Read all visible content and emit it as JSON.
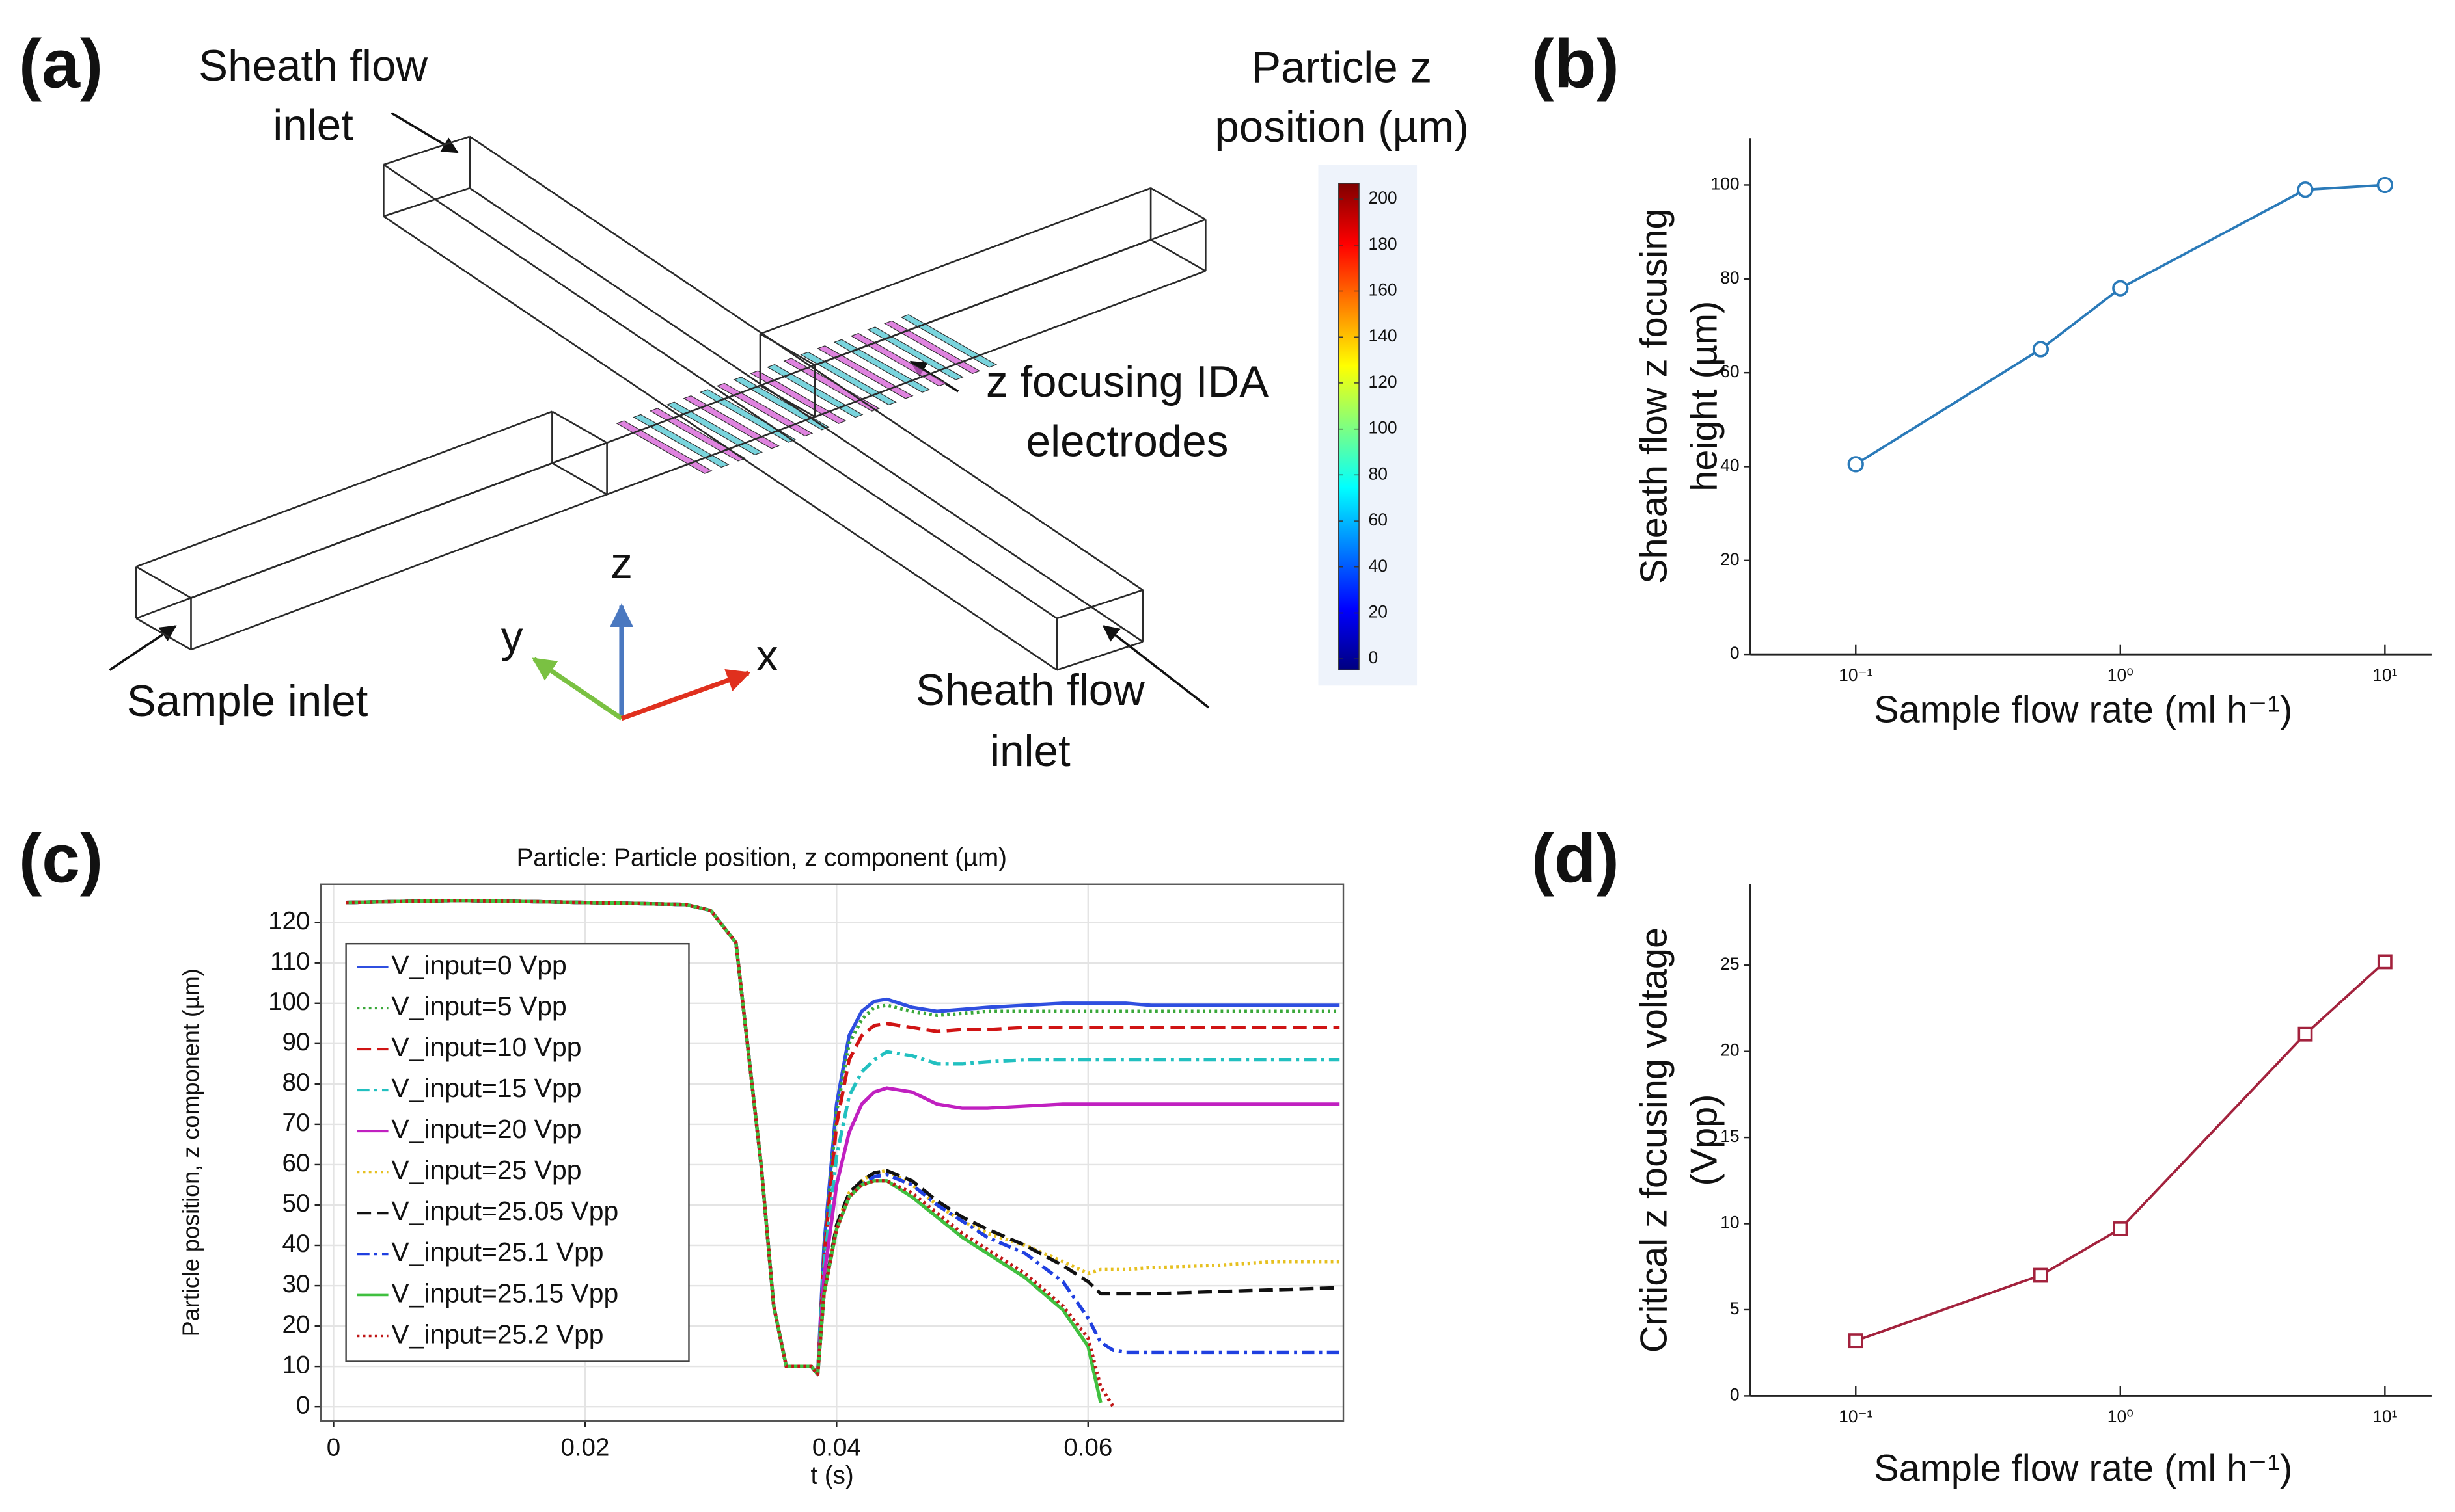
{
  "diagram": {
    "panel_label": "(a)",
    "sheath_inlet_top": [
      "Sheath flow",
      "inlet"
    ],
    "colorbar_title": [
      "Particle z",
      "position (µm)"
    ],
    "electrodes_label": [
      "z focusing IDA",
      "electrodes"
    ],
    "sample_inlet": "Sample inlet",
    "sheath_inlet_bottom": [
      "Sheath flow",
      "inlet"
    ],
    "axes": {
      "z": "z",
      "y": "y",
      "x": "x"
    },
    "colorbar": {
      "lim": [
        -4.8,
        206.8
      ],
      "ticks": [
        0,
        20,
        40,
        60,
        80,
        100,
        120,
        140,
        160,
        180,
        200
      ]
    }
  },
  "chart_data": [
    {
      "type": "line",
      "panel_label": "(b)",
      "xlabel": "Sample flow rate (ml h⁻¹)",
      "ylabel": [
        "Sheath flow z focusing",
        "height (µm)"
      ],
      "x": [
        0.1,
        0.5,
        1,
        5,
        10
      ],
      "values": [
        40.5,
        65,
        78,
        99,
        100
      ],
      "color": "#2a7ab9",
      "marker": "circle",
      "xscale": "log",
      "xlim": [
        0.04,
        15
      ],
      "ylim": [
        0,
        110
      ],
      "xticks": [
        {
          "value": 0.1,
          "label": "10⁻¹"
        },
        {
          "value": 1,
          "label": "10⁰"
        },
        {
          "value": 10,
          "label": "10¹"
        }
      ],
      "yticks": [
        0,
        20,
        40,
        60,
        80,
        100
      ]
    },
    {
      "type": "line",
      "panel_label": "(c)",
      "title": "Particle: Particle position, z component (µm)",
      "xlabel": "t (s)",
      "ylabel": [
        "Particle position, z component (µm)"
      ],
      "x": [
        0.001,
        0.01,
        0.02,
        0.028,
        0.03,
        0.032,
        0.034,
        0.035,
        0.036,
        0.038,
        0.0385,
        0.039,
        0.04,
        0.041,
        0.042,
        0.043,
        0.044,
        0.046,
        0.048,
        0.05,
        0.052,
        0.055,
        0.058,
        0.06,
        0.061,
        0.062,
        0.063,
        0.065,
        0.07,
        0.075,
        0.08
      ],
      "series": [
        {
          "name": "V_input=0 Vpp",
          "color": "#2f4fe0",
          "linestyle": "solid",
          "values": [
            125,
            125.5,
            125,
            124.5,
            123,
            115,
            60,
            25,
            10,
            10,
            8,
            40,
            75,
            92,
            98,
            100.5,
            101,
            99,
            98,
            98.5,
            99,
            99.5,
            100,
            100,
            100,
            100,
            100,
            99.5,
            99.5,
            99.5,
            99.5
          ]
        },
        {
          "name": "V_input=5 Vpp",
          "color": "#3aa83a",
          "linestyle": "dotted",
          "values": [
            125,
            125.5,
            125,
            124.5,
            123,
            115,
            60,
            25,
            10,
            10,
            8,
            38,
            73,
            90,
            96,
            99,
            99.5,
            98,
            97,
            97.5,
            98,
            98,
            98,
            98,
            98,
            98,
            98,
            98,
            98,
            98,
            98
          ]
        },
        {
          "name": "V_input=10 Vpp",
          "color": "#d01414",
          "linestyle": "dashed",
          "values": [
            125,
            125.5,
            125,
            124.5,
            123,
            115,
            60,
            25,
            10,
            10,
            8,
            37,
            70,
            86,
            92,
            94.5,
            95,
            94,
            93,
            93.5,
            93.5,
            94,
            94,
            94,
            94,
            94,
            94,
            94,
            94,
            94,
            94
          ]
        },
        {
          "name": "V_input=15 Vpp",
          "color": "#22c0c0",
          "linestyle": "dashdot",
          "values": [
            125,
            125.5,
            125,
            124.5,
            123,
            115,
            60,
            25,
            10,
            10,
            8,
            35,
            62,
            77,
            83,
            86,
            88,
            87,
            85,
            85,
            85.5,
            86,
            86,
            86,
            86,
            86,
            86,
            86,
            86,
            86,
            86
          ]
        },
        {
          "name": "V_input=20 Vpp",
          "color": "#c020c0",
          "linestyle": "solid",
          "values": [
            125,
            125.5,
            125,
            124.5,
            123,
            115,
            60,
            25,
            10,
            10,
            8,
            32,
            55,
            68,
            75,
            78,
            79,
            78,
            75,
            74,
            74,
            74.5,
            75,
            75,
            75,
            75,
            75,
            75,
            75,
            75,
            75
          ]
        },
        {
          "name": "V_input=25 Vpp",
          "color": "#e6c020",
          "linestyle": "dotted",
          "values": [
            125,
            125.5,
            125,
            124.5,
            123,
            115,
            60,
            25,
            10,
            10,
            8,
            28,
            45,
            53,
            56,
            58,
            58.5,
            55,
            50,
            46,
            43,
            40,
            36,
            33,
            34,
            34,
            34,
            34.5,
            35,
            36,
            36
          ]
        },
        {
          "name": "V_input=25.05 Vpp",
          "color": "#111111",
          "linestyle": "dashed",
          "values": [
            125,
            125.5,
            125,
            124.5,
            123,
            115,
            60,
            25,
            10,
            10,
            8,
            28,
            45,
            53,
            56,
            58,
            58.5,
            56,
            51,
            47,
            44,
            40,
            35,
            31,
            28,
            28,
            28,
            28,
            28.5,
            29,
            29.5
          ]
        },
        {
          "name": "V_input=25.1 Vpp",
          "color": "#2040e0",
          "linestyle": "dashdot",
          "values": [
            125,
            125.5,
            125,
            124.5,
            123,
            115,
            60,
            25,
            10,
            10,
            8,
            28,
            44,
            52,
            55,
            57,
            57.5,
            55,
            50,
            46,
            42,
            38,
            31,
            22,
            16,
            14,
            13.5,
            13.5,
            13.5,
            13.5,
            13.5
          ]
        },
        {
          "name": "V_input=25.15 Vpp",
          "color": "#40c040",
          "linestyle": "solid",
          "values": [
            125,
            125.5,
            125,
            124.5,
            123,
            115,
            60,
            25,
            10,
            10,
            8,
            28,
            44,
            52,
            55,
            56,
            56,
            52,
            47,
            42,
            38,
            32,
            24,
            15,
            1,
            null,
            null,
            null,
            null,
            null,
            null
          ]
        },
        {
          "name": "V_input=25.2 Vpp",
          "color": "#c01818",
          "linestyle": "dotted",
          "values": [
            125,
            125.5,
            125,
            124.5,
            123,
            115,
            60,
            25,
            10,
            10,
            8,
            28,
            44,
            52,
            55,
            56,
            56,
            53,
            48,
            43,
            39,
            33,
            25,
            17,
            5,
            0,
            null,
            null,
            null,
            null,
            null
          ]
        }
      ],
      "xlim": [
        -0.001,
        0.0803
      ],
      "ylim": [
        -3.5,
        129.5
      ],
      "xticks": [
        0,
        0.02,
        0.04,
        0.06
      ],
      "yticks": [
        0,
        10,
        20,
        30,
        40,
        50,
        60,
        70,
        80,
        90,
        100,
        110,
        120
      ],
      "grid": true,
      "legend": "upper left"
    },
    {
      "type": "line",
      "panel_label": "(d)",
      "xlabel": "Sample flow rate (ml h⁻¹)",
      "ylabel": [
        "Critical z focusing voltage",
        "(Vpp)"
      ],
      "x": [
        0.1,
        0.5,
        1,
        5,
        10
      ],
      "values": [
        3.2,
        7,
        9.7,
        21,
        25.2
      ],
      "color": "#a3223d",
      "marker": "square",
      "xscale": "log",
      "xlim": [
        0.04,
        15
      ],
      "ylim": [
        0,
        29.7
      ],
      "xticks": [
        {
          "value": 0.1,
          "label": "10⁻¹"
        },
        {
          "value": 1,
          "label": "10⁰"
        },
        {
          "value": 10,
          "label": "10¹"
        }
      ],
      "yticks": [
        0,
        5,
        10,
        15,
        20,
        25
      ]
    }
  ]
}
